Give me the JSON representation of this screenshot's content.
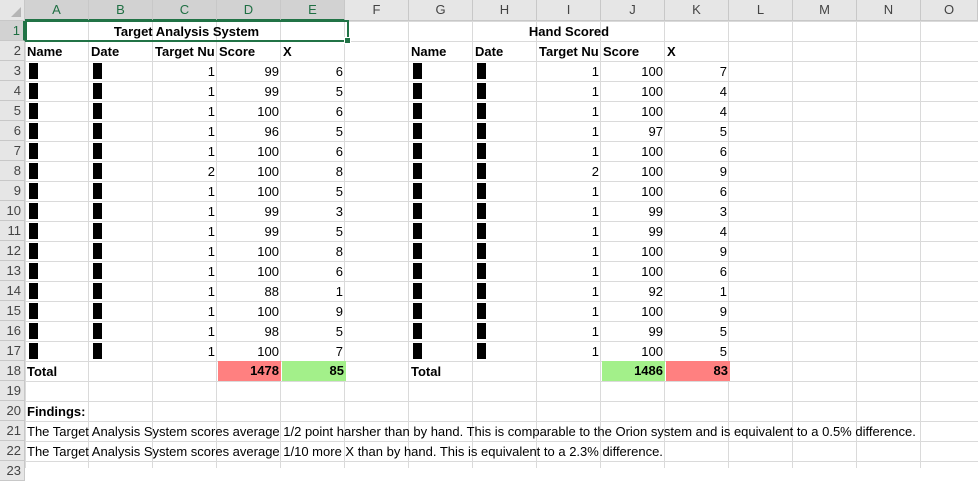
{
  "columns": [
    "A",
    "B",
    "C",
    "D",
    "E",
    "F",
    "G",
    "H",
    "I",
    "J",
    "K",
    "L",
    "M",
    "N",
    "O"
  ],
  "rows": [
    "1",
    "2",
    "3",
    "4",
    "5",
    "6",
    "7",
    "8",
    "9",
    "10",
    "11",
    "12",
    "13",
    "14",
    "15",
    "16",
    "17",
    "18",
    "19",
    "20",
    "21",
    "22",
    "23"
  ],
  "tas": {
    "title": "Target Analysis System",
    "headers": {
      "name": "Name",
      "date": "Date",
      "target": "Target Nu",
      "score": "Score",
      "x": "X"
    },
    "target_numbers": [
      "1",
      "1",
      "1",
      "1",
      "1",
      "2",
      "1",
      "1",
      "1",
      "1",
      "1",
      "1",
      "1",
      "1",
      "1"
    ],
    "scores": [
      "99",
      "99",
      "100",
      "96",
      "100",
      "100",
      "100",
      "99",
      "99",
      "100",
      "100",
      "88",
      "100",
      "98",
      "100"
    ],
    "xs": [
      "6",
      "5",
      "6",
      "5",
      "6",
      "8",
      "5",
      "3",
      "5",
      "8",
      "6",
      "1",
      "9",
      "5",
      "7"
    ],
    "total_label": "Total",
    "total_score": "1478",
    "total_x": "85"
  },
  "hand": {
    "title": "Hand Scored",
    "headers": {
      "name": "Name",
      "date": "Date",
      "target": "Target Nu",
      "score": "Score",
      "x": "X"
    },
    "target_numbers": [
      "1",
      "1",
      "1",
      "1",
      "1",
      "2",
      "1",
      "1",
      "1",
      "1",
      "1",
      "1",
      "1",
      "1",
      "1"
    ],
    "scores": [
      "100",
      "100",
      "100",
      "97",
      "100",
      "100",
      "100",
      "99",
      "99",
      "100",
      "100",
      "92",
      "100",
      "99",
      "100"
    ],
    "xs": [
      "7",
      "4",
      "4",
      "5",
      "6",
      "9",
      "6",
      "3",
      "4",
      "9",
      "6",
      "1",
      "9",
      "5",
      "5"
    ],
    "total_label": "Total",
    "total_score": "1486",
    "total_x": "83"
  },
  "findings": {
    "label": "Findings:",
    "line1": "The Target Analysis System scores average 1/2 point harsher than by hand. This is comparable to the Orion system and is equivalent to a 0.5% difference.",
    "line2": "The Target Analysis System scores average 1/10 more X than by hand. This is equivalent to a 2.3% difference."
  },
  "colors": {
    "worse": "#ff8080",
    "better": "#a3f08a",
    "selection": "#217346"
  }
}
